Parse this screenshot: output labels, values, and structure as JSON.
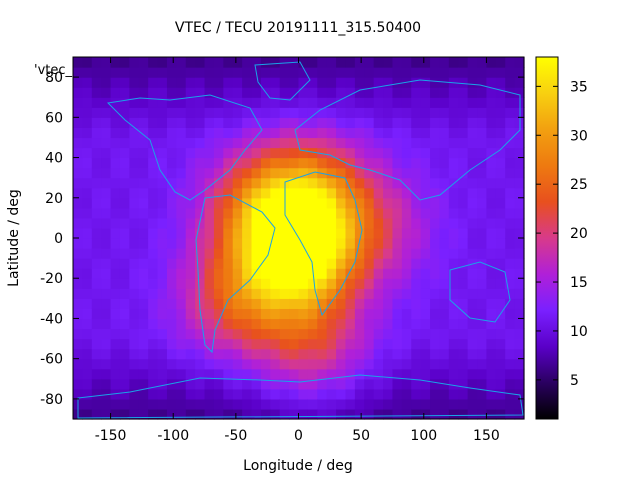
{
  "chart_data": {
    "type": "heatmap",
    "title": "VTEC / TECU 20191111_315.50400",
    "xlabel": "Longitude / deg",
    "ylabel": "Latitude / deg",
    "series_key": "'vtec_",
    "xlim": [
      -180,
      180
    ],
    "ylim": [
      -90,
      90
    ],
    "x_ticks": [
      -150,
      -100,
      -50,
      0,
      50,
      100,
      150
    ],
    "y_ticks": [
      -80,
      -60,
      -40,
      -20,
      0,
      20,
      40,
      60,
      80
    ],
    "colorbar": {
      "range": [
        1,
        38
      ],
      "ticks": [
        5,
        10,
        15,
        20,
        25,
        30,
        35
      ],
      "palette": [
        "#000000",
        "#2a0060",
        "#5a00c8",
        "#7a20ff",
        "#b020d8",
        "#d83a8a",
        "#e8501e",
        "#ee7a10",
        "#f2a010",
        "#f8d010",
        "#ffff00"
      ]
    },
    "field_peaks": [
      {
        "lon": 0,
        "lat": -10,
        "tec": 36
      },
      {
        "lon": 10,
        "lat": 22,
        "tec": 26
      },
      {
        "lon": -30,
        "lat": 15,
        "tec": 24
      },
      {
        "lon": -50,
        "lat": -30,
        "tec": 22
      },
      {
        "lon": 10,
        "lat": -55,
        "tec": 20
      },
      {
        "lon": 60,
        "lat": 5,
        "tec": 18
      }
    ],
    "background_tec": 11
  }
}
